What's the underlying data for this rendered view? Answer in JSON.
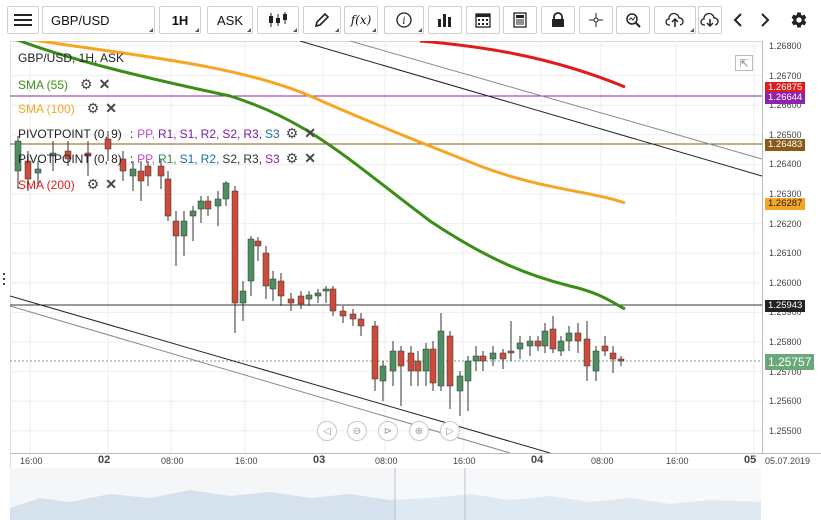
{
  "toolbar": {
    "symbol": "GBP/USD",
    "timeframe": "1H",
    "price_type": "ASK",
    "fx_label": "f(x)"
  },
  "legend": {
    "title": "GBP/USD, 1H, ASK",
    "sma55": "SMA (55)",
    "sma100": "SMA (100)",
    "pivot1_name": "PIVOTPOINT (0, 9)",
    "pivot2_name": "PIVOTPOINT (0, 8)",
    "pivot_colon": ":",
    "pivot_items": [
      "PP,",
      "R1,",
      "S1,",
      "R2,",
      "S2,",
      "R3,",
      "S3"
    ],
    "sma200": "SMA (200)",
    "colors": {
      "sma55": "#3a8e16",
      "sma100": "#f5a623",
      "sma200": "#e11b1b",
      "pivot1": "#7b1fa2",
      "pivot2": "#8a5a19"
    }
  },
  "price_axis": {
    "ticks": [
      "1.26800",
      "1.26700",
      "1.26600",
      "1.26500",
      "1.26400",
      "1.26300",
      "1.26200",
      "1.26100",
      "1.26000",
      "1.25900",
      "1.25800",
      "1.25700",
      "1.25600",
      "1.25500"
    ],
    "tags": [
      {
        "value": "1.26875",
        "color": "#e11b1b"
      },
      {
        "value": "1.26644",
        "color": "#8e24aa"
      },
      {
        "value": "1.26483",
        "color": "#8a5a19"
      },
      {
        "value": "1.26287",
        "color": "#f5a623"
      },
      {
        "value": "1.25943",
        "color": "#222222"
      }
    ],
    "last_price": "1.25757"
  },
  "time_axis": {
    "labels": [
      {
        "text": "16:00",
        "bold": false
      },
      {
        "text": "02",
        "bold": true
      },
      {
        "text": "08:00",
        "bold": false
      },
      {
        "text": "16:00",
        "bold": false
      },
      {
        "text": "03",
        "bold": true
      },
      {
        "text": "08:00",
        "bold": false
      },
      {
        "text": "16:00",
        "bold": false
      },
      {
        "text": "04",
        "bold": true
      },
      {
        "text": "08:00",
        "bold": false
      },
      {
        "text": "16:00",
        "bold": false
      },
      {
        "text": "05",
        "bold": true
      }
    ],
    "date": "05.07.2019"
  },
  "icons": {
    "menu": "hamburger-menu-icon",
    "candles": "candlestick-type-icon",
    "draw": "pencil-draw-icon",
    "indicators": "function-fx-icon",
    "info": "info-icon",
    "volume": "bar-chart-icon",
    "calendar": "calendar-icon",
    "news": "newspaper-icon",
    "lock": "lock-icon",
    "crosshair": "crosshair-icon",
    "zoom": "zoom-icon",
    "upload": "cloud-upload-icon",
    "download": "cloud-download-icon",
    "prev": "chevron-left-icon",
    "next": "chevron-right-icon",
    "settings": "gear-icon"
  }
}
